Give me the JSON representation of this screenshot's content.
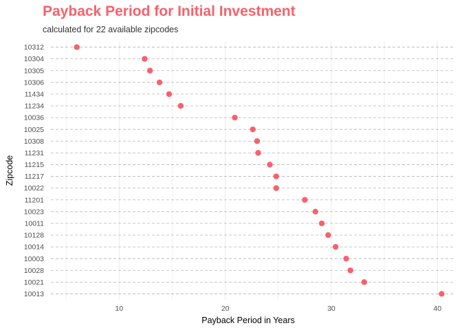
{
  "chart_data": {
    "type": "scatter",
    "title": "Payback Period for Initial Investment",
    "subtitle": "calculated for 22 available zipcodes",
    "xlabel": "Payback Period in Years",
    "ylabel": "Zipcode",
    "xlim": [
      3.3,
      41.8
    ],
    "xticks": [
      10,
      20,
      30,
      40
    ],
    "grid": true,
    "categories": [
      "10312",
      "10304",
      "10305",
      "10306",
      "11434",
      "11234",
      "10036",
      "10025",
      "10308",
      "11231",
      "11215",
      "11217",
      "10022",
      "11201",
      "10023",
      "10011",
      "10128",
      "10014",
      "10003",
      "10028",
      "10021",
      "10013"
    ],
    "values": [
      6.0,
      12.4,
      12.9,
      13.8,
      14.7,
      15.8,
      20.9,
      22.6,
      23.0,
      23.1,
      24.2,
      24.8,
      24.8,
      27.5,
      28.5,
      29.1,
      29.7,
      30.4,
      31.4,
      31.8,
      33.1,
      40.4
    ]
  },
  "colors": {
    "title": "#f8616b",
    "point": "#f8616b",
    "grid": "#ebebeb",
    "guide": "#b3b3b3"
  }
}
